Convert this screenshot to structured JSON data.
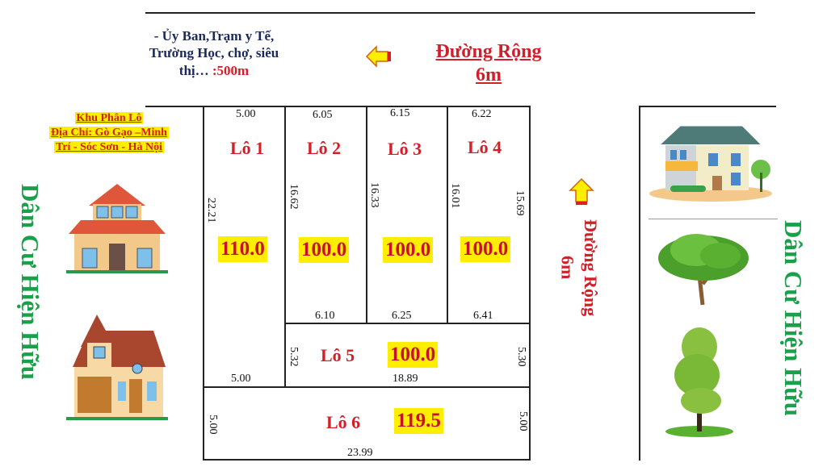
{
  "info": {
    "note_line1": "- Ủy Ban,Trạm y Tế,",
    "note_line2": "Trường Học, chợ, siêu",
    "note_line3": "thị…",
    "note_distance": ":500m",
    "address_line1": "Khu Phân Lô",
    "address_line2": "Địa Chỉ: Gò Gạo –Minh",
    "address_line3": "Trí - Sóc Sơn - Hà Nội"
  },
  "roads": {
    "top": {
      "line1": "Đường Rộng",
      "line2": "6m",
      "arrow": "arrow-left-icon"
    },
    "right": {
      "line1": "Đường Rộng",
      "line2": "6m",
      "arrow": "arrow-up-icon"
    }
  },
  "residents": {
    "left": "Dân Cư Hiện Hữu",
    "right": "Dân Cư Hiện Hữu"
  },
  "lots": [
    {
      "name": "Lô 1",
      "area": "110.0",
      "top": "5.00",
      "bottom": "5.00",
      "left": "22.21"
    },
    {
      "name": "Lô 2",
      "area": "100.0",
      "top": "6.05",
      "bottom": "6.10",
      "left": "16.62"
    },
    {
      "name": "Lô 3",
      "area": "100.0",
      "top": "6.15",
      "bottom": "6.25",
      "left": "16.33"
    },
    {
      "name": "Lô 4",
      "area": "100.0",
      "top": "6.22",
      "bottom": "6.41",
      "left": "16.01",
      "right": "15.69"
    },
    {
      "name": "Lô 5",
      "area": "100.0",
      "left": "5.32",
      "right": "5.30",
      "bottom": "18.89"
    },
    {
      "name": "Lô 6",
      "area": "119.5",
      "left": "5.00",
      "right": "5.00",
      "bottom": "23.99"
    }
  ],
  "colors": {
    "lot_label": "#d0202a",
    "area_highlight": "#ffee00",
    "resident_text": "#1aa04a",
    "note_text": "#1b2a5c"
  }
}
